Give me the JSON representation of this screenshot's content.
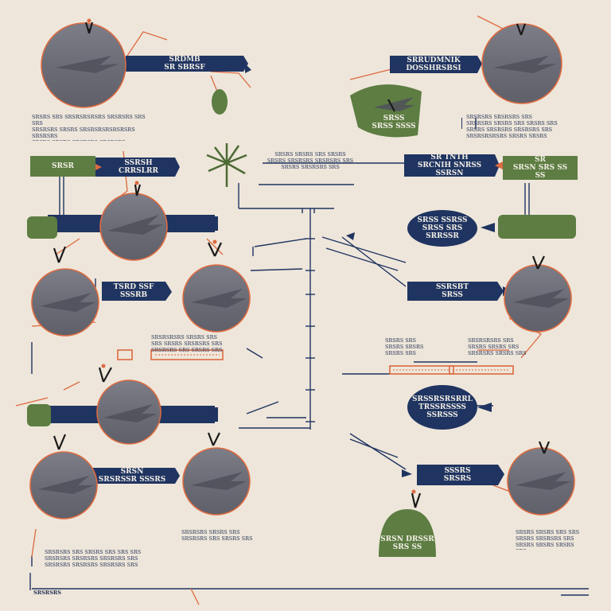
{
  "colors": {
    "navy": "#1f3461",
    "green": "#5d7d42",
    "orange": "#dd6a40",
    "grey": "#6e6f7a",
    "background": "#eee6da"
  },
  "banners": [
    {
      "id": "banner-top-left",
      "text": "SRDMB\nSR SBRSF"
    },
    {
      "id": "banner-top-right",
      "text": "SRRUDMNIK\nDOSSHRSBSI"
    },
    {
      "id": "banner-mid-left",
      "text": "SSRSH\nCRRSLRR"
    },
    {
      "id": "banner-mid-right",
      "text": "SR TNTH\nSRCNIH SNRSS SSRSN"
    },
    {
      "id": "banner-left-center",
      "text": "TSRD SSF\nSSSRB"
    },
    {
      "id": "banner-right-center",
      "text": "SSRSBT\nSRSS"
    },
    {
      "id": "banner-bottom-left",
      "text": "SRSN\nSRSRSSR SSSRS"
    },
    {
      "id": "banner-bottom-right",
      "text": "SSSRS\nSRSRS"
    }
  ],
  "green_labels": [
    {
      "id": "green-top-right",
      "text": "SRSS\nSRSS SSSS"
    },
    {
      "id": "green-left",
      "text": "SRSR"
    },
    {
      "id": "green-right",
      "text": "SR\nSRSN SRS SS\nSS"
    },
    {
      "id": "green-bottom-right",
      "text": "SRSN DRSSR\nSRS SS"
    }
  ],
  "ovals": [
    {
      "id": "oval-upper-right",
      "text": "SRSS SSRSS\nSRSS SRS SRRSSR"
    },
    {
      "id": "oval-lower-right",
      "text": "SRSSRSRSRRL\nTRSSRSSSS\nSSRSSS"
    }
  ],
  "text_blocks": [
    {
      "id": "text-top-left",
      "text": "SRSRS SRS SRSRSRSRSRS SRSRSRS SRS SRS\nSRSRSRS SRSRS SRSRSRSRSRSRSRS SRSRSRS\nSRSRS SRSRS SRSRSRS SRSRSRS\nSRSRSRS SRS"
    },
    {
      "id": "text-top-right",
      "text": "SRSRSRS SRSRSRS SRS\nSRSRSRS SRSRS SRS SRSRS SRS\nSRSRS SRSRSRS SRSRSRS SRS\nSRSRSRSRSRS SRSRS SRSRS"
    },
    {
      "id": "text-top-center",
      "text": "SRSRS SRSRS SRS SRSRS\nSRSRS SRSRSRS SRSRSRS SRS\nSRSRS SRSRSRS SRS"
    },
    {
      "id": "text-mid-center-left",
      "text": "SRSRSRSRS SRSRS SRS\nSRS SRSRS SRSRSRS SRS\nSRSRSRS SRS SRSRS SRS"
    },
    {
      "id": "text-mid-center-right-a",
      "text": "SRSRS SRS\nSRSRS SRSRS\nSRSRS SRS"
    },
    {
      "id": "text-mid-center-right-b",
      "text": "SRSRSRSRS SRS\nSRSRS SRSRS SRS\nSRSRSRS SRSRS SRS"
    },
    {
      "id": "text-bottom-left",
      "text": "SRSRSRS SRS SRSRS SRS SRS SRS\nSRSRSRS SRSRSRS SRSRSRS SRS\nSRSRSRS SRSRSRS SRSRSRS SRS"
    },
    {
      "id": "text-bottom-center",
      "text": "SRSRSRS SRSRS SRS\nSRSRSRS SRS SRSRS SRS"
    },
    {
      "id": "text-bottom-right",
      "text": "SRSRS SRSRS SRS SRS\nSRSRS SRSRSRS SRS\nSRSRS SRSRS SRSRS SRS"
    },
    {
      "id": "text-footer-left",
      "text": "SRSRSRS"
    }
  ]
}
